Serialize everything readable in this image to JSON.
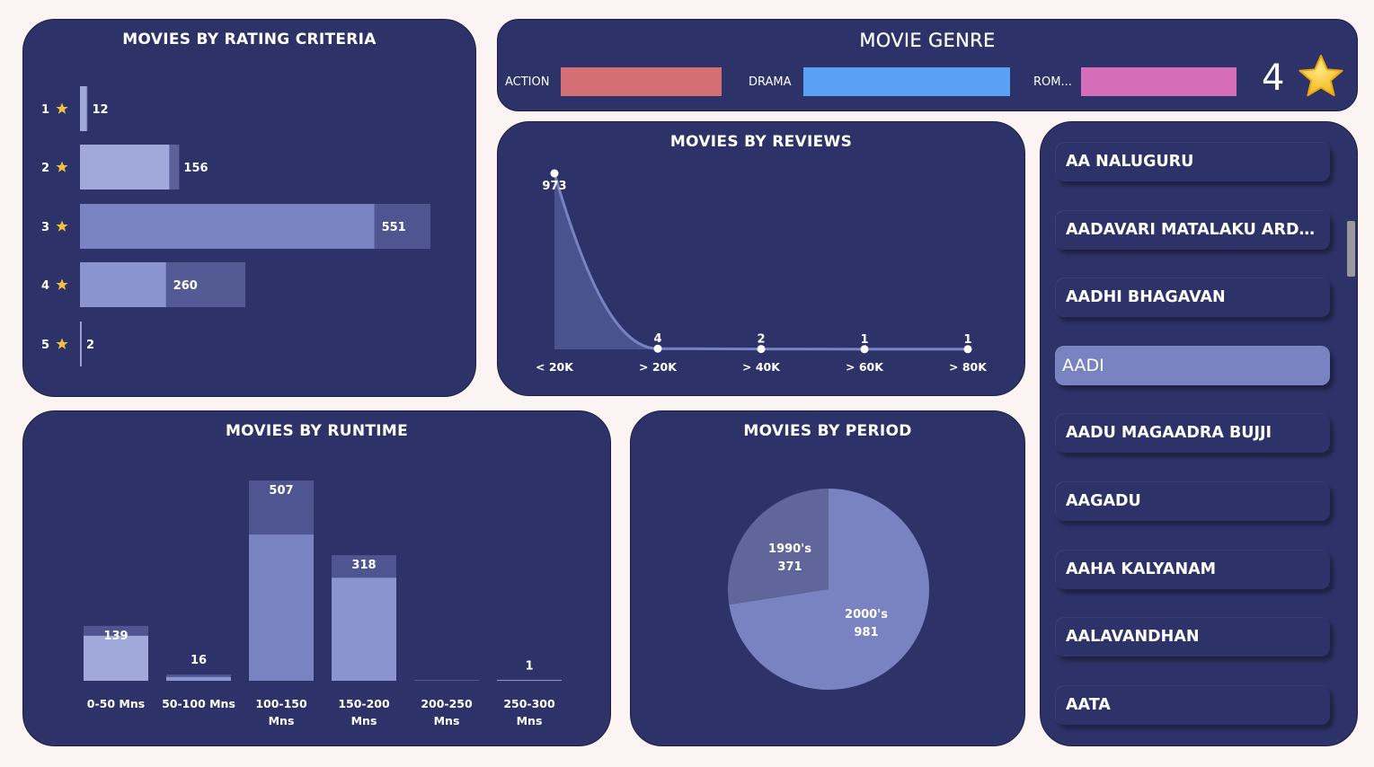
{
  "rating_chart": {
    "title": "MOVIES BY RATING CRITERIA",
    "chart_data": {
      "type": "bar",
      "orientation": "horizontal",
      "categories": [
        "1",
        "2",
        "3",
        "4",
        "5"
      ],
      "values": [
        12,
        156,
        551,
        260,
        2
      ],
      "title": "MOVIES BY RATING CRITERIA",
      "star_icon": "star-icon",
      "bar_color": "#a1a9db",
      "bar_color_alt": "#7a83c2"
    }
  },
  "genre": {
    "title": "MOVIE GENRE",
    "items": [
      {
        "label": "ACTION",
        "color": "#d46f75"
      },
      {
        "label": "DRAMA",
        "color": "#5aa0f5"
      },
      {
        "label": "ROM...",
        "color": "#d66db8"
      }
    ],
    "rating_value": "4",
    "rating_icon": "star-icon"
  },
  "reviews_chart": {
    "title": "MOVIES BY REVIEWS",
    "chart_data": {
      "type": "area",
      "categories": [
        "< 20K",
        "> 20K",
        "> 40K",
        "> 60K",
        "> 80K"
      ],
      "values": [
        973,
        4,
        2,
        1,
        1
      ],
      "title": "MOVIES BY REVIEWS"
    }
  },
  "movie_list": {
    "items": [
      {
        "label": "AA NALUGURU",
        "selected": false
      },
      {
        "label": "AADAVARI MATALAKU ARDHALE VERULE",
        "selected": false
      },
      {
        "label": "AADHI BHAGAVAN",
        "selected": false
      },
      {
        "label": "AADI",
        "selected": true
      },
      {
        "label": "AADU MAGAADRA BUJJI",
        "selected": false
      },
      {
        "label": "AAGADU",
        "selected": false
      },
      {
        "label": "AAHA KALYANAM",
        "selected": false
      },
      {
        "label": "AALAVANDHAN",
        "selected": false
      },
      {
        "label": "AATA",
        "selected": false
      }
    ]
  },
  "runtime_chart": {
    "title": "MOVIES BY RUNTIME",
    "chart_data": {
      "type": "bar",
      "categories": [
        "0-50 Mns",
        "50-100 Mns",
        "100-150 Mns",
        "150-200 Mns",
        "200-250 Mns",
        "250-300 Mns"
      ],
      "values": [
        139,
        16,
        507,
        318,
        0,
        1
      ],
      "value_labels": [
        "139",
        "16",
        "507",
        "318",
        "",
        "1"
      ],
      "title": "MOVIES BY RUNTIME"
    }
  },
  "period_chart": {
    "title": "MOVIES BY PERIOD",
    "chart_data": {
      "type": "pie",
      "categories": [
        "1990's",
        "2000's"
      ],
      "values": [
        371,
        981
      ],
      "colors": [
        "#606699",
        "#7a83c2"
      ],
      "title": "MOVIES BY PERIOD"
    }
  }
}
